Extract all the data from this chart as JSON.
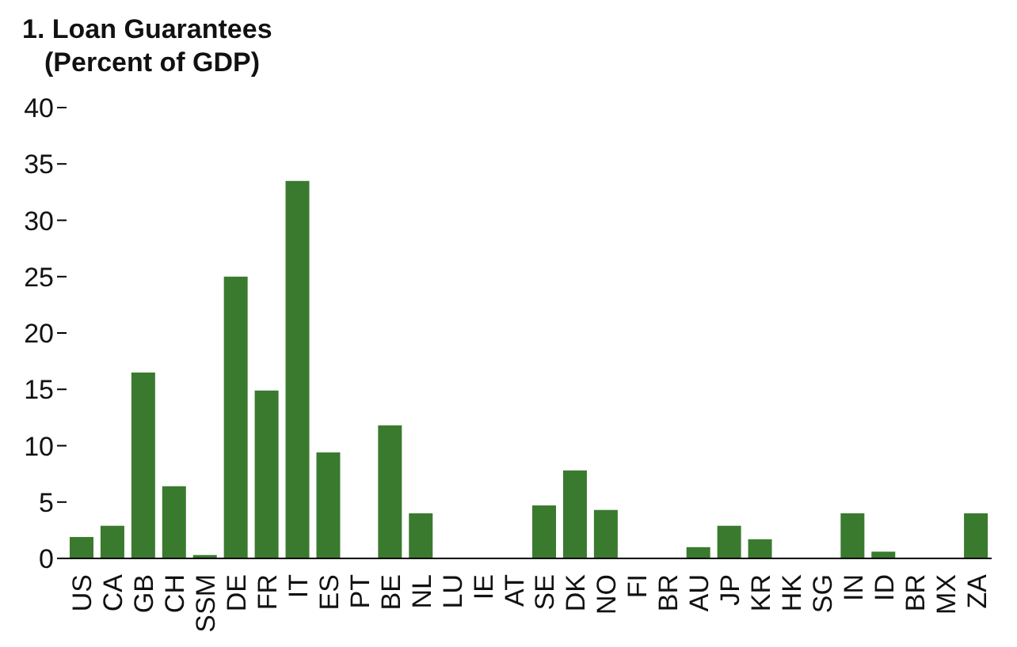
{
  "chart_data": {
    "type": "bar",
    "title": "1. Loan Guarantees",
    "subtitle": "(Percent of GDP)",
    "categories": [
      "US",
      "CA",
      "GB",
      "CH",
      "SSM",
      "DE",
      "FR",
      "IT",
      "ES",
      "PT",
      "BE",
      "NL",
      "LU",
      "IE",
      "AT",
      "SE",
      "DK",
      "NO",
      "FI",
      "BR",
      "AU",
      "JP",
      "KR",
      "HK",
      "SG",
      "IN",
      "ID",
      "BR",
      "MX",
      "ZA"
    ],
    "values": [
      1.9,
      2.9,
      16.5,
      6.4,
      0.3,
      25.0,
      14.9,
      33.5,
      9.4,
      0,
      11.8,
      4.0,
      0,
      0,
      0,
      4.7,
      7.8,
      4.3,
      0,
      0,
      1.0,
      2.9,
      1.7,
      0,
      0,
      4.0,
      0.6,
      0,
      0,
      4.0
    ],
    "color": "#3a7a2e",
    "ylim": [
      0,
      40
    ],
    "yticks": [
      0,
      5,
      10,
      15,
      20,
      25,
      30,
      35,
      40
    ],
    "grid": false
  }
}
